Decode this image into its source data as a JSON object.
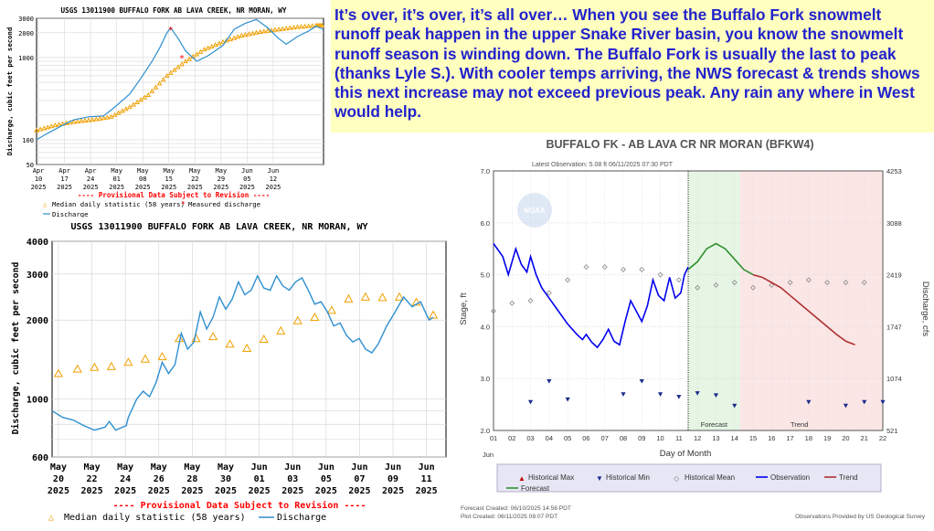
{
  "note": {
    "text": "It’s over, it’s over, it’s all over…    When you see the Buffalo Fork snowmelt runoff peak happen in the upper Snake River basin, you know the snowmelt runoff season is winding down. The Buffalo Fork is usually the last to peak (thanks Lyle S.). With cooler temps arriving, the NWS forecast & trends shows this next increase may not exceed previous peak. Any rain any where in West would help."
  },
  "colors": {
    "discharge": "#2e8fd0",
    "median": "#f0a000",
    "measured": "#ff0000",
    "observation": "#0000ee",
    "forecast": "#2f8f2f",
    "trend": "#b03030"
  },
  "chart_data": [
    {
      "type": "line",
      "title": "USGS 13011900 BUFFALO FORK AB LAVA CREEK, NR MORAN, WY",
      "ylabel": "Discharge, cubic feet per second",
      "yscale": "log",
      "ylim": [
        50,
        3000
      ],
      "yticks": [
        "50",
        "100",
        "1000",
        "2000",
        "3000"
      ],
      "xticks": [
        [
          "Apr",
          "10",
          "2025"
        ],
        [
          "Apr",
          "17",
          "2025"
        ],
        [
          "Apr",
          "24",
          "2025"
        ],
        [
          "May",
          "01",
          "2025"
        ],
        [
          "May",
          "08",
          "2025"
        ],
        [
          "May",
          "15",
          "2025"
        ],
        [
          "May",
          "22",
          "2025"
        ],
        [
          "May",
          "29",
          "2025"
        ],
        [
          "Jun",
          "05",
          "2025"
        ],
        [
          "Jun",
          "12",
          "2025"
        ]
      ],
      "revision_note": "---- Provisional Data Subject to Revision ----",
      "legend": [
        "Median daily statistic (58 years)",
        "Measured discharge",
        "Discharge"
      ],
      "discharge": [
        [
          0,
          100
        ],
        [
          3,
          120
        ],
        [
          7,
          150
        ],
        [
          10,
          175
        ],
        [
          14,
          190
        ],
        [
          18,
          195
        ],
        [
          21,
          250
        ],
        [
          25,
          360
        ],
        [
          28,
          560
        ],
        [
          31,
          900
        ],
        [
          33,
          1300
        ],
        [
          35,
          2000
        ],
        [
          36,
          2300
        ],
        [
          38,
          1700
        ],
        [
          40,
          1200
        ],
        [
          43,
          900
        ],
        [
          46,
          1050
        ],
        [
          50,
          1400
        ],
        [
          53,
          2200
        ],
        [
          56,
          2600
        ],
        [
          59,
          2900
        ],
        [
          62,
          2300
        ],
        [
          65,
          1700
        ],
        [
          67,
          1450
        ],
        [
          70,
          1800
        ],
        [
          73,
          2100
        ],
        [
          75,
          2400
        ],
        [
          77,
          2200
        ]
      ],
      "median": [
        [
          0,
          130
        ],
        [
          5,
          150
        ],
        [
          10,
          165
        ],
        [
          15,
          175
        ],
        [
          20,
          190
        ],
        [
          25,
          250
        ],
        [
          30,
          350
        ],
        [
          35,
          600
        ],
        [
          40,
          900
        ],
        [
          45,
          1250
        ],
        [
          50,
          1550
        ],
        [
          55,
          1850
        ],
        [
          60,
          2050
        ],
        [
          65,
          2200
        ],
        [
          70,
          2350
        ],
        [
          75,
          2450
        ],
        [
          77,
          2450
        ]
      ],
      "measured": [
        [
          36,
          2200
        ],
        [
          39,
          1000
        ]
      ]
    },
    {
      "type": "line",
      "title": "USGS 13011900 BUFFALO FORK AB LAVA CREEK, NR MORAN, WY",
      "ylabel": "Discharge, cubic feet per second",
      "yscale": "log",
      "ylim": [
        600,
        4000
      ],
      "yticks": [
        "600",
        "1000",
        "2000",
        "3000",
        "4000"
      ],
      "xticks": [
        [
          "May",
          "20",
          "2025"
        ],
        [
          "May",
          "22",
          "2025"
        ],
        [
          "May",
          "24",
          "2025"
        ],
        [
          "May",
          "26",
          "2025"
        ],
        [
          "May",
          "28",
          "2025"
        ],
        [
          "May",
          "30",
          "2025"
        ],
        [
          "Jun",
          "01",
          "2025"
        ],
        [
          "Jun",
          "03",
          "2025"
        ],
        [
          "Jun",
          "05",
          "2025"
        ],
        [
          "Jun",
          "07",
          "2025"
        ],
        [
          "Jun",
          "09",
          "2025"
        ],
        [
          "Jun",
          "11",
          "2025"
        ]
      ],
      "revision_note": "---- Provisional Data Subject to Revision ----",
      "legend": [
        "Median daily statistic (58 years)",
        "Discharge"
      ],
      "median": [
        [
          0.3,
          1250
        ],
        [
          1.2,
          1300
        ],
        [
          2,
          1320
        ],
        [
          2.8,
          1330
        ],
        [
          3.6,
          1380
        ],
        [
          4.4,
          1420
        ],
        [
          5.2,
          1450
        ],
        [
          6,
          1700
        ],
        [
          6.8,
          1700
        ],
        [
          7.6,
          1730
        ],
        [
          8.4,
          1620
        ],
        [
          9.2,
          1560
        ],
        [
          10,
          1690
        ],
        [
          10.8,
          1820
        ],
        [
          11.6,
          1990
        ],
        [
          12.4,
          2050
        ],
        [
          13.2,
          2180
        ],
        [
          14,
          2410
        ],
        [
          14.8,
          2450
        ],
        [
          15.6,
          2440
        ],
        [
          16.4,
          2450
        ],
        [
          17.2,
          2340
        ],
        [
          18,
          2090
        ]
      ],
      "discharge": [
        [
          0,
          900
        ],
        [
          0.5,
          850
        ],
        [
          1,
          830
        ],
        [
          1.5,
          790
        ],
        [
          2,
          760
        ],
        [
          2.5,
          780
        ],
        [
          2.7,
          820
        ],
        [
          3,
          760
        ],
        [
          3.5,
          790
        ],
        [
          3.6,
          850
        ],
        [
          4,
          1000
        ],
        [
          4.3,
          1070
        ],
        [
          4.6,
          1020
        ],
        [
          4.9,
          1150
        ],
        [
          5.2,
          1380
        ],
        [
          5.5,
          1250
        ],
        [
          5.8,
          1350
        ],
        [
          6.1,
          1780
        ],
        [
          6.4,
          1550
        ],
        [
          6.7,
          1650
        ],
        [
          7,
          2150
        ],
        [
          7.3,
          1850
        ],
        [
          7.6,
          2050
        ],
        [
          7.9,
          2450
        ],
        [
          8.2,
          2200
        ],
        [
          8.5,
          2400
        ],
        [
          8.8,
          2800
        ],
        [
          9.1,
          2500
        ],
        [
          9.4,
          2600
        ],
        [
          9.7,
          2950
        ],
        [
          10,
          2650
        ],
        [
          10.3,
          2600
        ],
        [
          10.6,
          2950
        ],
        [
          10.9,
          2700
        ],
        [
          11.2,
          2600
        ],
        [
          11.5,
          2800
        ],
        [
          11.8,
          2900
        ],
        [
          12.1,
          2600
        ],
        [
          12.4,
          2300
        ],
        [
          12.7,
          2350
        ],
        [
          13,
          2150
        ],
        [
          13.3,
          1900
        ],
        [
          13.6,
          1950
        ],
        [
          13.9,
          1750
        ],
        [
          14.2,
          1650
        ],
        [
          14.5,
          1700
        ],
        [
          14.8,
          1550
        ],
        [
          15.1,
          1500
        ],
        [
          15.4,
          1620
        ],
        [
          15.8,
          1900
        ],
        [
          16.2,
          2150
        ],
        [
          16.6,
          2450
        ],
        [
          17,
          2250
        ],
        [
          17.4,
          2350
        ],
        [
          17.8,
          2000
        ],
        [
          18,
          2050
        ]
      ]
    },
    {
      "type": "line",
      "title": "BUFFALO FK - AB LAVA CR NR MORAN  (BFKW4)",
      "latest_observation": "Latest Observation: 5.08 ft 06/11/2025 07:30 PDT",
      "ylabel": "Stage, ft",
      "y2label": "Discharge, cfs",
      "xlabel": "Day of Month",
      "ylim": [
        2.0,
        7.0
      ],
      "yticks": [
        "2.0",
        "3.0",
        "4.0",
        "5.0",
        "6.0",
        "7.0"
      ],
      "y2ticks": [
        "521",
        "1074",
        "1747",
        "2419",
        "3088",
        "4253"
      ],
      "xticks": [
        "01",
        "02",
        "03",
        "04",
        "05",
        "06",
        "07",
        "08",
        "09",
        "10",
        "11",
        "12",
        "13",
        "14",
        "15",
        "16",
        "17",
        "18",
        "19",
        "20",
        "21",
        "22"
      ],
      "x_month": "Jun",
      "region_labels": [
        "Forecast",
        "Trend"
      ],
      "legend": [
        "Historical Max",
        "Historical Min",
        "Historical Mean",
        "Observation",
        "Trend",
        "Forecast"
      ],
      "forecast_created": "Forecast Created: 06/10/2025 14:56 PDT",
      "plot_created": "Plot Created: 06/11/2025 08:07 PDT",
      "credit": "Observations Provided by US Geological Survey",
      "watermark": "NOAA",
      "observation": [
        [
          1,
          5.6
        ],
        [
          1.5,
          5.35
        ],
        [
          1.8,
          5.0
        ],
        [
          2.2,
          5.5
        ],
        [
          2.5,
          5.2
        ],
        [
          2.8,
          5.05
        ],
        [
          3.0,
          5.35
        ],
        [
          3.3,
          5.0
        ],
        [
          3.6,
          4.75
        ],
        [
          4.0,
          4.55
        ],
        [
          4.5,
          4.3
        ],
        [
          5.0,
          4.05
        ],
        [
          5.5,
          3.85
        ],
        [
          5.8,
          3.75
        ],
        [
          6.0,
          3.85
        ],
        [
          6.3,
          3.7
        ],
        [
          6.6,
          3.6
        ],
        [
          6.9,
          3.75
        ],
        [
          7.2,
          3.95
        ],
        [
          7.5,
          3.72
        ],
        [
          7.8,
          3.65
        ],
        [
          8.1,
          4.1
        ],
        [
          8.4,
          4.5
        ],
        [
          8.7,
          4.3
        ],
        [
          9.0,
          4.1
        ],
        [
          9.3,
          4.4
        ],
        [
          9.6,
          4.9
        ],
        [
          9.9,
          4.6
        ],
        [
          10.2,
          4.5
        ],
        [
          10.5,
          4.95
        ],
        [
          10.8,
          4.55
        ],
        [
          11.1,
          4.65
        ],
        [
          11.3,
          5.0
        ],
        [
          11.5,
          5.15
        ]
      ],
      "forecast": [
        [
          11.5,
          5.1
        ],
        [
          12,
          5.25
        ],
        [
          12.5,
          5.5
        ],
        [
          13,
          5.6
        ],
        [
          13.5,
          5.5
        ],
        [
          14,
          5.3
        ],
        [
          14.5,
          5.1
        ],
        [
          15,
          5.0
        ]
      ],
      "trend": [
        [
          15,
          5.0
        ],
        [
          15.5,
          4.95
        ],
        [
          16,
          4.85
        ],
        [
          16.5,
          4.75
        ],
        [
          17,
          4.6
        ],
        [
          17.5,
          4.45
        ],
        [
          18,
          4.3
        ],
        [
          18.5,
          4.15
        ],
        [
          19,
          4.0
        ],
        [
          19.5,
          3.85
        ],
        [
          20,
          3.72
        ],
        [
          20.5,
          3.65
        ]
      ],
      "historical_mean": [
        [
          1,
          4.3
        ],
        [
          2,
          4.45
        ],
        [
          3,
          4.5
        ],
        [
          4,
          4.65
        ],
        [
          5,
          4.9
        ],
        [
          6,
          5.15
        ],
        [
          7,
          5.15
        ],
        [
          8,
          5.1
        ],
        [
          9,
          5.1
        ],
        [
          10,
          5.0
        ],
        [
          11,
          4.9
        ],
        [
          12,
          4.75
        ],
        [
          13,
          4.8
        ],
        [
          14,
          4.85
        ],
        [
          15,
          4.75
        ],
        [
          16,
          4.8
        ],
        [
          17,
          4.85
        ],
        [
          18,
          4.9
        ],
        [
          19,
          4.85
        ],
        [
          20,
          4.85
        ],
        [
          21,
          4.85
        ]
      ],
      "historical_min": [
        [
          3,
          2.55
        ],
        [
          4,
          2.95
        ],
        [
          5,
          2.6
        ],
        [
          8,
          2.7
        ],
        [
          9,
          2.95
        ],
        [
          10,
          2.7
        ],
        [
          11,
          2.65
        ],
        [
          12,
          2.72
        ],
        [
          13,
          2.68
        ],
        [
          14,
          2.48
        ],
        [
          18,
          2.55
        ],
        [
          20,
          2.48
        ],
        [
          21,
          2.55
        ],
        [
          22,
          2.55
        ]
      ]
    }
  ]
}
